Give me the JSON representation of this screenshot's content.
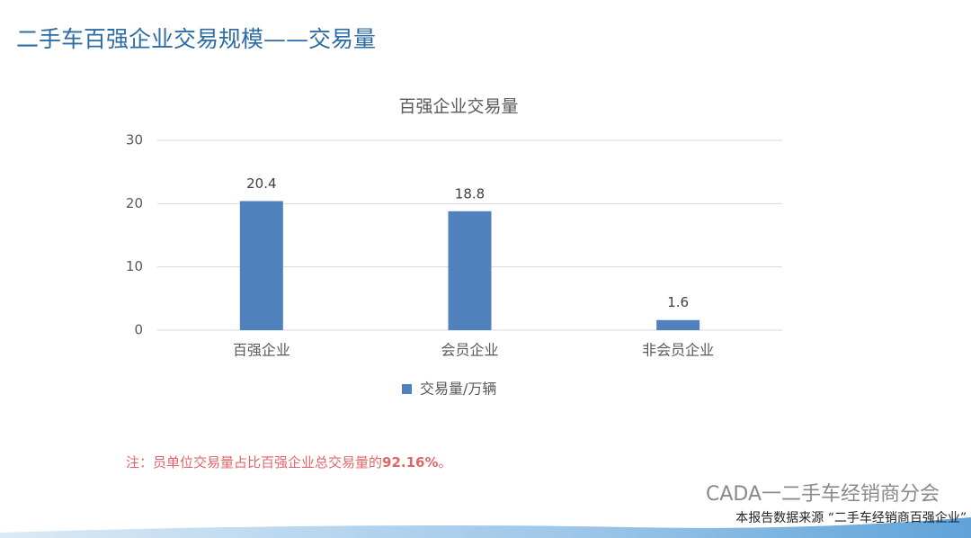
{
  "header": {
    "title": "二手车百强企业交易规模——交易量"
  },
  "chart_data": {
    "type": "bar",
    "title": "百强企业交易量",
    "categories": [
      "百强企业",
      "会员企业",
      "非会员企业"
    ],
    "series": [
      {
        "name": "交易量/万辆",
        "color": "#4f81bd",
        "values": [
          20.4,
          18.8,
          1.6
        ]
      }
    ],
    "ylim": [
      0,
      30
    ],
    "yticks": [
      0,
      10,
      20,
      30
    ],
    "grid": true
  },
  "note": {
    "parts": [
      "注：员单位交易量占比百强企业总交易量的",
      "92.16%",
      "。"
    ]
  },
  "watermark": {
    "text": "CADA一二手车经销商分会"
  },
  "footer": {
    "text": "本报告数据来源 “二手车经销商百强企业”"
  }
}
